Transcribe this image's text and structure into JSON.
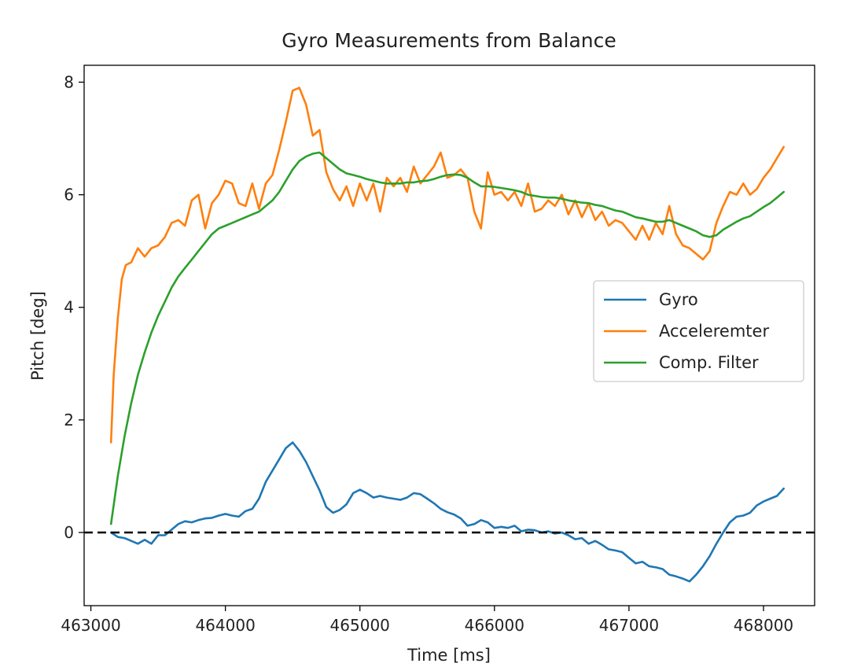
{
  "chart_data": {
    "type": "line",
    "title": "Gyro Measurements from Balance",
    "xlabel": "Time [ms]",
    "ylabel": "Pitch [deg]",
    "xlim": [
      462950,
      468380
    ],
    "ylim": [
      -1.3,
      8.3
    ],
    "xticks": [
      463000,
      464000,
      465000,
      466000,
      467000,
      468000
    ],
    "yticks": [
      0,
      2,
      4,
      6,
      8
    ],
    "grid": false,
    "legend": {
      "placement": "center-right"
    },
    "reference_line": {
      "y": 0,
      "style": "dashed",
      "color": "#000000"
    },
    "series": [
      {
        "name": "Gyro",
        "color": "#1f77b4",
        "points": [
          [
            463150,
            0.0
          ],
          [
            463200,
            -0.08
          ],
          [
            463250,
            -0.1
          ],
          [
            463300,
            -0.15
          ],
          [
            463350,
            -0.2
          ],
          [
            463400,
            -0.13
          ],
          [
            463450,
            -0.2
          ],
          [
            463500,
            -0.05
          ],
          [
            463550,
            -0.05
          ],
          [
            463600,
            0.05
          ],
          [
            463650,
            0.15
          ],
          [
            463700,
            0.2
          ],
          [
            463750,
            0.18
          ],
          [
            463800,
            0.22
          ],
          [
            463850,
            0.25
          ],
          [
            463900,
            0.26
          ],
          [
            463950,
            0.3
          ],
          [
            464000,
            0.33
          ],
          [
            464050,
            0.3
          ],
          [
            464100,
            0.28
          ],
          [
            464150,
            0.38
          ],
          [
            464200,
            0.42
          ],
          [
            464250,
            0.6
          ],
          [
            464300,
            0.9
          ],
          [
            464350,
            1.1
          ],
          [
            464400,
            1.3
          ],
          [
            464450,
            1.5
          ],
          [
            464500,
            1.6
          ],
          [
            464550,
            1.45
          ],
          [
            464600,
            1.25
          ],
          [
            464650,
            1.0
          ],
          [
            464700,
            0.75
          ],
          [
            464750,
            0.45
          ],
          [
            464800,
            0.35
          ],
          [
            464850,
            0.4
          ],
          [
            464900,
            0.5
          ],
          [
            464950,
            0.7
          ],
          [
            465000,
            0.76
          ],
          [
            465050,
            0.7
          ],
          [
            465100,
            0.62
          ],
          [
            465150,
            0.65
          ],
          [
            465200,
            0.62
          ],
          [
            465250,
            0.6
          ],
          [
            465300,
            0.58
          ],
          [
            465350,
            0.62
          ],
          [
            465400,
            0.7
          ],
          [
            465450,
            0.68
          ],
          [
            465500,
            0.6
          ],
          [
            465550,
            0.52
          ],
          [
            465600,
            0.42
          ],
          [
            465650,
            0.36
          ],
          [
            465700,
            0.32
          ],
          [
            465750,
            0.25
          ],
          [
            465800,
            0.12
          ],
          [
            465850,
            0.15
          ],
          [
            465900,
            0.22
          ],
          [
            465950,
            0.18
          ],
          [
            466000,
            0.08
          ],
          [
            466050,
            0.1
          ],
          [
            466100,
            0.08
          ],
          [
            466150,
            0.12
          ],
          [
            466200,
            0.02
          ],
          [
            466250,
            0.05
          ],
          [
            466300,
            0.04
          ],
          [
            466350,
            0.0
          ],
          [
            466400,
            0.02
          ],
          [
            466450,
            -0.02
          ],
          [
            466500,
            0.0
          ],
          [
            466550,
            -0.05
          ],
          [
            466600,
            -0.12
          ],
          [
            466650,
            -0.1
          ],
          [
            466700,
            -0.2
          ],
          [
            466750,
            -0.15
          ],
          [
            466800,
            -0.22
          ],
          [
            466850,
            -0.3
          ],
          [
            466900,
            -0.32
          ],
          [
            466950,
            -0.35
          ],
          [
            467000,
            -0.45
          ],
          [
            467050,
            -0.55
          ],
          [
            467100,
            -0.52
          ],
          [
            467150,
            -0.6
          ],
          [
            467200,
            -0.62
          ],
          [
            467250,
            -0.65
          ],
          [
            467300,
            -0.75
          ],
          [
            467350,
            -0.78
          ],
          [
            467400,
            -0.82
          ],
          [
            467450,
            -0.87
          ],
          [
            467500,
            -0.75
          ],
          [
            467550,
            -0.6
          ],
          [
            467600,
            -0.42
          ],
          [
            467650,
            -0.2
          ],
          [
            467700,
            0.0
          ],
          [
            467750,
            0.18
          ],
          [
            467800,
            0.28
          ],
          [
            467850,
            0.3
          ],
          [
            467900,
            0.35
          ],
          [
            467950,
            0.48
          ],
          [
            468000,
            0.55
          ],
          [
            468050,
            0.6
          ],
          [
            468100,
            0.65
          ],
          [
            468150,
            0.78
          ]
        ]
      },
      {
        "name": "Acceleremter",
        "color": "#ff7f0e",
        "points": [
          [
            463150,
            1.6
          ],
          [
            463170,
            2.8
          ],
          [
            463200,
            3.8
          ],
          [
            463230,
            4.5
          ],
          [
            463260,
            4.75
          ],
          [
            463300,
            4.8
          ],
          [
            463350,
            5.05
          ],
          [
            463400,
            4.9
          ],
          [
            463450,
            5.05
          ],
          [
            463500,
            5.1
          ],
          [
            463550,
            5.25
          ],
          [
            463600,
            5.5
          ],
          [
            463650,
            5.55
          ],
          [
            463700,
            5.45
          ],
          [
            463750,
            5.9
          ],
          [
            463800,
            6.0
          ],
          [
            463850,
            5.4
          ],
          [
            463900,
            5.85
          ],
          [
            463950,
            6.0
          ],
          [
            464000,
            6.25
          ],
          [
            464050,
            6.2
          ],
          [
            464100,
            5.85
          ],
          [
            464150,
            5.8
          ],
          [
            464200,
            6.2
          ],
          [
            464250,
            5.75
          ],
          [
            464300,
            6.2
          ],
          [
            464350,
            6.35
          ],
          [
            464400,
            6.8
          ],
          [
            464450,
            7.3
          ],
          [
            464500,
            7.85
          ],
          [
            464550,
            7.9
          ],
          [
            464600,
            7.6
          ],
          [
            464650,
            7.05
          ],
          [
            464700,
            7.15
          ],
          [
            464750,
            6.4
          ],
          [
            464800,
            6.1
          ],
          [
            464850,
            5.9
          ],
          [
            464900,
            6.15
          ],
          [
            464950,
            5.8
          ],
          [
            465000,
            6.2
          ],
          [
            465050,
            5.9
          ],
          [
            465100,
            6.2
          ],
          [
            465150,
            5.7
          ],
          [
            465200,
            6.3
          ],
          [
            465250,
            6.15
          ],
          [
            465300,
            6.3
          ],
          [
            465350,
            6.05
          ],
          [
            465400,
            6.5
          ],
          [
            465450,
            6.2
          ],
          [
            465500,
            6.35
          ],
          [
            465550,
            6.5
          ],
          [
            465600,
            6.75
          ],
          [
            465650,
            6.3
          ],
          [
            465700,
            6.35
          ],
          [
            465750,
            6.45
          ],
          [
            465800,
            6.3
          ],
          [
            465850,
            5.7
          ],
          [
            465900,
            5.4
          ],
          [
            465950,
            6.4
          ],
          [
            466000,
            6.0
          ],
          [
            466050,
            6.05
          ],
          [
            466100,
            5.9
          ],
          [
            466150,
            6.05
          ],
          [
            466200,
            5.8
          ],
          [
            466250,
            6.2
          ],
          [
            466300,
            5.7
          ],
          [
            466350,
            5.75
          ],
          [
            466400,
            5.9
          ],
          [
            466450,
            5.8
          ],
          [
            466500,
            6.0
          ],
          [
            466550,
            5.65
          ],
          [
            466600,
            5.9
          ],
          [
            466650,
            5.6
          ],
          [
            466700,
            5.85
          ],
          [
            466750,
            5.55
          ],
          [
            466800,
            5.7
          ],
          [
            466850,
            5.45
          ],
          [
            466900,
            5.55
          ],
          [
            466950,
            5.5
          ],
          [
            467000,
            5.35
          ],
          [
            467050,
            5.2
          ],
          [
            467100,
            5.45
          ],
          [
            467150,
            5.2
          ],
          [
            467200,
            5.5
          ],
          [
            467250,
            5.3
          ],
          [
            467300,
            5.8
          ],
          [
            467350,
            5.3
          ],
          [
            467400,
            5.1
          ],
          [
            467450,
            5.05
          ],
          [
            467500,
            4.95
          ],
          [
            467550,
            4.85
          ],
          [
            467600,
            5.0
          ],
          [
            467650,
            5.5
          ],
          [
            467700,
            5.8
          ],
          [
            467750,
            6.05
          ],
          [
            467800,
            6.0
          ],
          [
            467850,
            6.2
          ],
          [
            467900,
            6.0
          ],
          [
            467950,
            6.1
          ],
          [
            468000,
            6.3
          ],
          [
            468050,
            6.45
          ],
          [
            468100,
            6.65
          ],
          [
            468150,
            6.85
          ]
        ]
      },
      {
        "name": "Comp. Filter",
        "color": "#2ca02c",
        "points": [
          [
            463150,
            0.15
          ],
          [
            463200,
            1.0
          ],
          [
            463250,
            1.7
          ],
          [
            463300,
            2.3
          ],
          [
            463350,
            2.8
          ],
          [
            463400,
            3.2
          ],
          [
            463450,
            3.55
          ],
          [
            463500,
            3.85
          ],
          [
            463550,
            4.1
          ],
          [
            463600,
            4.35
          ],
          [
            463650,
            4.55
          ],
          [
            463700,
            4.7
          ],
          [
            463750,
            4.85
          ],
          [
            463800,
            5.0
          ],
          [
            463850,
            5.15
          ],
          [
            463900,
            5.3
          ],
          [
            463950,
            5.4
          ],
          [
            464000,
            5.45
          ],
          [
            464050,
            5.5
          ],
          [
            464100,
            5.55
          ],
          [
            464150,
            5.6
          ],
          [
            464200,
            5.65
          ],
          [
            464250,
            5.7
          ],
          [
            464300,
            5.8
          ],
          [
            464350,
            5.9
          ],
          [
            464400,
            6.05
          ],
          [
            464450,
            6.25
          ],
          [
            464500,
            6.45
          ],
          [
            464550,
            6.6
          ],
          [
            464600,
            6.68
          ],
          [
            464650,
            6.73
          ],
          [
            464700,
            6.75
          ],
          [
            464750,
            6.65
          ],
          [
            464800,
            6.55
          ],
          [
            464850,
            6.45
          ],
          [
            464900,
            6.38
          ],
          [
            464950,
            6.35
          ],
          [
            465000,
            6.32
          ],
          [
            465050,
            6.28
          ],
          [
            465100,
            6.25
          ],
          [
            465150,
            6.22
          ],
          [
            465200,
            6.2
          ],
          [
            465250,
            6.2
          ],
          [
            465300,
            6.2
          ],
          [
            465350,
            6.22
          ],
          [
            465400,
            6.22
          ],
          [
            465450,
            6.24
          ],
          [
            465500,
            6.25
          ],
          [
            465550,
            6.28
          ],
          [
            465600,
            6.32
          ],
          [
            465650,
            6.35
          ],
          [
            465700,
            6.36
          ],
          [
            465750,
            6.35
          ],
          [
            465800,
            6.3
          ],
          [
            465850,
            6.22
          ],
          [
            465900,
            6.15
          ],
          [
            465950,
            6.15
          ],
          [
            466000,
            6.14
          ],
          [
            466050,
            6.12
          ],
          [
            466100,
            6.1
          ],
          [
            466150,
            6.08
          ],
          [
            466200,
            6.05
          ],
          [
            466250,
            6.0
          ],
          [
            466300,
            5.98
          ],
          [
            466350,
            5.96
          ],
          [
            466400,
            5.95
          ],
          [
            466450,
            5.95
          ],
          [
            466500,
            5.93
          ],
          [
            466550,
            5.9
          ],
          [
            466600,
            5.88
          ],
          [
            466650,
            5.86
          ],
          [
            466700,
            5.85
          ],
          [
            466750,
            5.82
          ],
          [
            466800,
            5.8
          ],
          [
            466850,
            5.76
          ],
          [
            466900,
            5.72
          ],
          [
            466950,
            5.7
          ],
          [
            467000,
            5.65
          ],
          [
            467050,
            5.6
          ],
          [
            467100,
            5.58
          ],
          [
            467150,
            5.55
          ],
          [
            467200,
            5.52
          ],
          [
            467250,
            5.52
          ],
          [
            467300,
            5.55
          ],
          [
            467350,
            5.5
          ],
          [
            467400,
            5.45
          ],
          [
            467450,
            5.4
          ],
          [
            467500,
            5.35
          ],
          [
            467550,
            5.28
          ],
          [
            467600,
            5.25
          ],
          [
            467650,
            5.28
          ],
          [
            467700,
            5.38
          ],
          [
            467750,
            5.45
          ],
          [
            467800,
            5.52
          ],
          [
            467850,
            5.58
          ],
          [
            467900,
            5.62
          ],
          [
            467950,
            5.7
          ],
          [
            468000,
            5.78
          ],
          [
            468050,
            5.85
          ],
          [
            468100,
            5.95
          ],
          [
            468150,
            6.05
          ]
        ]
      }
    ]
  }
}
